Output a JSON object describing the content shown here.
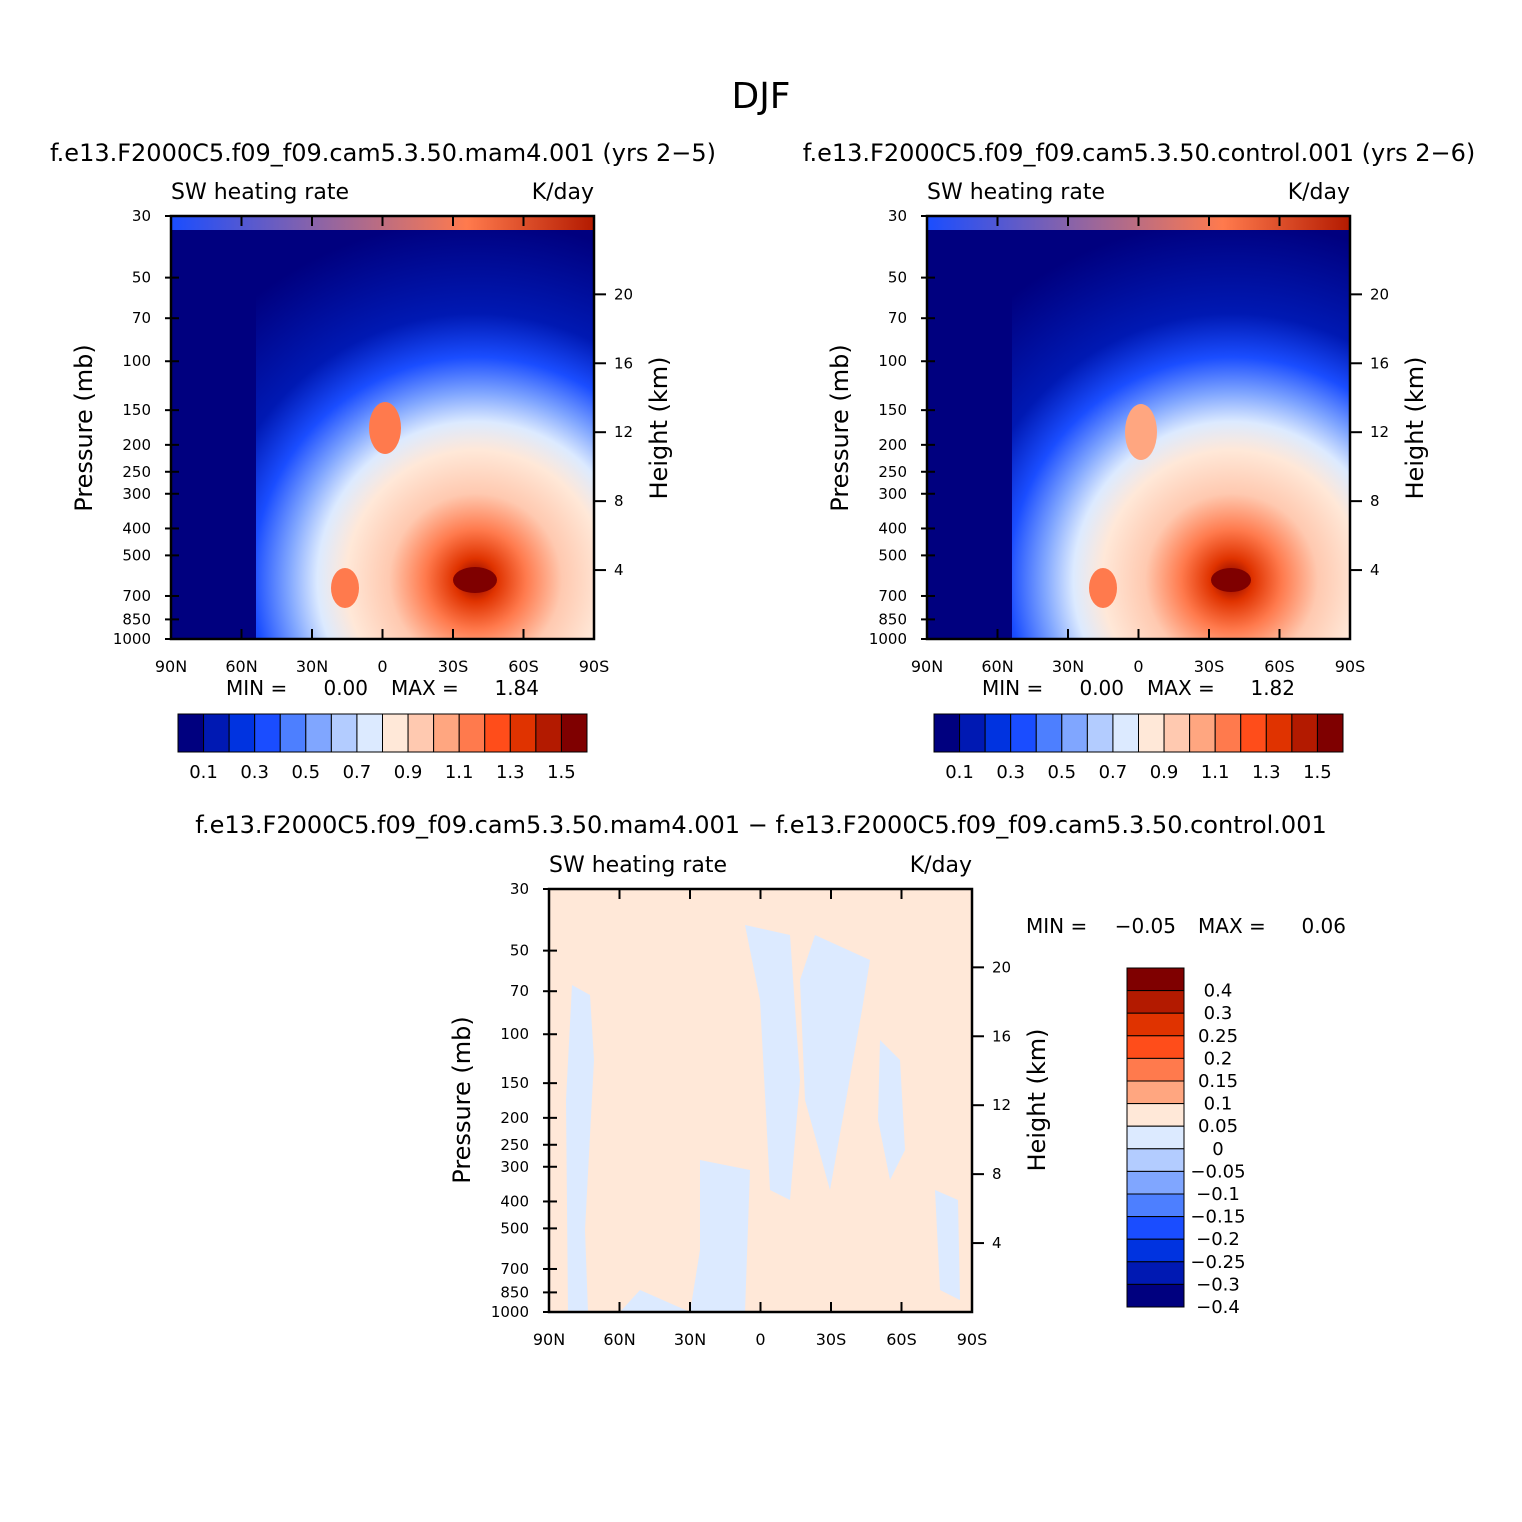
{
  "figure": {
    "title": "DJF"
  },
  "chart_data": [
    {
      "type": "contour",
      "panel": "mam4",
      "run_title": "f.e13.F2000C5.f09_f09.cam5.3.50.mam4.001 (yrs 2−5)",
      "left_label": "SW heating rate",
      "right_label": "K/day",
      "ylabel": "Pressure (mb)",
      "y2label": "Height (km)",
      "x_ticks": [
        "90N",
        "60N",
        "30N",
        "0",
        "30S",
        "60S",
        "90S"
      ],
      "y_ticks": [
        "30",
        "50",
        "70",
        "100",
        "150",
        "200",
        "250",
        "300",
        "400",
        "500",
        "700",
        "850",
        "1000"
      ],
      "y2_ticks": [
        "20",
        "16",
        "12",
        "8",
        "4"
      ],
      "min_label": "MIN =",
      "min_value": "0.00",
      "max_label": "MAX =",
      "max_value": "1.84",
      "colorbar_labels": [
        "0.1",
        "0.3",
        "0.5",
        "0.7",
        "0.9",
        "1.1",
        "1.3",
        "1.5"
      ]
    },
    {
      "type": "contour",
      "panel": "control",
      "run_title": "f.e13.F2000C5.f09_f09.cam5.3.50.control.001 (yrs 2−6)",
      "left_label": "SW heating rate",
      "right_label": "K/day",
      "ylabel": "Pressure (mb)",
      "y2label": "Height (km)",
      "x_ticks": [
        "90N",
        "60N",
        "30N",
        "0",
        "30S",
        "60S",
        "90S"
      ],
      "y_ticks": [
        "30",
        "50",
        "70",
        "100",
        "150",
        "200",
        "250",
        "300",
        "400",
        "500",
        "700",
        "850",
        "1000"
      ],
      "y2_ticks": [
        "20",
        "16",
        "12",
        "8",
        "4"
      ],
      "min_label": "MIN =",
      "min_value": "0.00",
      "max_label": "MAX =",
      "max_value": "1.82",
      "colorbar_labels": [
        "0.1",
        "0.3",
        "0.5",
        "0.7",
        "0.9",
        "1.1",
        "1.3",
        "1.5"
      ]
    },
    {
      "type": "contour",
      "panel": "difference",
      "run_title": "f.e13.F2000C5.f09_f09.cam5.3.50.mam4.001 − f.e13.F2000C5.f09_f09.cam5.3.50.control.001",
      "left_label": "SW heating rate",
      "right_label": "K/day",
      "ylabel": "Pressure (mb)",
      "y2label": "Height (km)",
      "x_ticks": [
        "90N",
        "60N",
        "30N",
        "0",
        "30S",
        "60S",
        "90S"
      ],
      "y_ticks": [
        "30",
        "50",
        "70",
        "100",
        "150",
        "200",
        "250",
        "300",
        "400",
        "500",
        "700",
        "850",
        "1000"
      ],
      "y2_ticks": [
        "20",
        "16",
        "12",
        "8",
        "4"
      ],
      "min_label": "MIN =",
      "min_value": "−0.05",
      "max_label": "MAX =",
      "max_value": "0.06",
      "colorbar_labels": [
        "0.4",
        "0.3",
        "0.25",
        "0.2",
        "0.15",
        "0.1",
        "0.05",
        "0",
        "−0.05",
        "−0.1",
        "−0.15",
        "−0.2",
        "−0.25",
        "−0.3",
        "−0.4"
      ]
    }
  ],
  "palettes": {
    "abs": [
      "#00007f",
      "#0019b3",
      "#0033e0",
      "#1a4dff",
      "#4d7fff",
      "#80a6ff",
      "#b3ccff",
      "#dceaff",
      "#ffe8d8",
      "#ffc9b0",
      "#ffa680",
      "#ff7a4d",
      "#ff4d1a",
      "#e03300",
      "#b31a00",
      "#7f0000"
    ],
    "diff": [
      "#7f0000",
      "#b31a00",
      "#e03300",
      "#ff4d1a",
      "#ff7a4d",
      "#ffa680",
      "#ffe8d8",
      "#dceaff",
      "#b3ccff",
      "#80a6ff",
      "#4d7fff",
      "#1a4dff",
      "#0033e0",
      "#0019b3",
      "#00007f"
    ]
  }
}
